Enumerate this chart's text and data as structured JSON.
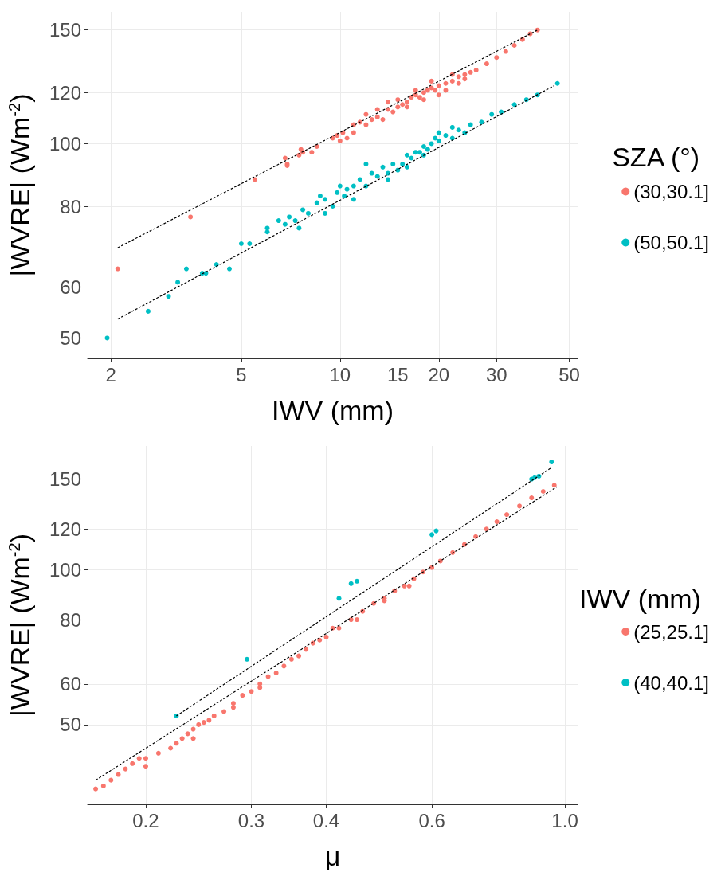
{
  "chart_data": [
    {
      "type": "scatter",
      "xlabel": "IWV (mm)",
      "ylabel": "|WVRE| (Wm$^{-2}$)",
      "legend_title": "SZA (°)",
      "legend": "right",
      "grid": true,
      "marker": "circle",
      "log": "xy",
      "xlim": [
        1.7,
        53
      ],
      "xticks": [
        2,
        5,
        10,
        15,
        20,
        30,
        50
      ],
      "ylim": [
        46.5,
        160
      ],
      "yticks": [
        50,
        60,
        80,
        100,
        120,
        150
      ],
      "series": [
        {
          "name": "(30,30.1]",
          "color": "#f8766d",
          "x": [
            2.1,
            3.5,
            5.5,
            6.8,
            6.9,
            6.9,
            7.5,
            7.6,
            7.7,
            8.2,
            8.5,
            9.5,
            9.8,
            10,
            10.2,
            10.5,
            11,
            11.5,
            12,
            12.5,
            13,
            13.5,
            14,
            14.5,
            15,
            15.5,
            16,
            16.5,
            17,
            17.5,
            18,
            18.5,
            19,
            19.5,
            20,
            21,
            22,
            23,
            24,
            25,
            26,
            28,
            30,
            32,
            34,
            36,
            38,
            40,
            15,
            16,
            17,
            18,
            19,
            20,
            21,
            22,
            23,
            24,
            13,
            14,
            12,
            11
          ],
          "values": [
            64,
            77,
            88,
            95,
            93,
            92.5,
            96,
            98,
            97,
            97,
            99,
            102,
            103,
            101,
            104,
            102,
            104,
            108,
            107,
            109,
            110,
            109,
            113,
            112,
            114,
            115,
            116,
            118,
            119,
            118,
            120,
            121,
            122,
            121,
            123,
            124,
            125,
            127,
            128,
            129,
            130,
            133,
            136,
            139,
            142,
            145,
            148,
            150,
            117,
            114,
            121,
            117,
            125,
            119,
            121,
            128,
            124,
            126,
            113,
            116,
            111,
            107
          ]
        },
        {
          "name": "(50,50.1]",
          "color": "#00bfc4",
          "x": [
            1.95,
            2.6,
            3,
            3.2,
            3.4,
            3.8,
            3.9,
            4.2,
            4.6,
            5,
            5.3,
            6,
            6,
            6.5,
            6.8,
            7,
            7.3,
            7.5,
            7.7,
            8,
            8.5,
            8.7,
            9,
            9.5,
            9.8,
            10,
            10.3,
            10.5,
            11,
            11.5,
            12,
            12.5,
            13,
            13.5,
            14,
            14.5,
            15,
            15.5,
            16,
            16.5,
            17,
            17.5,
            18,
            18.5,
            19,
            19.5,
            20,
            21,
            22,
            23,
            24,
            25,
            27,
            29,
            31,
            34,
            37,
            40,
            46,
            12,
            14,
            16,
            20,
            22,
            18,
            11,
            9
          ],
          "values": [
            50,
            55,
            58,
            61,
            64,
            63,
            63,
            65,
            64,
            70,
            70,
            73,
            74,
            76,
            75,
            77,
            76,
            74,
            79,
            78,
            81,
            83,
            78,
            80,
            84,
            86,
            83,
            85,
            82,
            88,
            86,
            90,
            89,
            92,
            90,
            93,
            91,
            93,
            96,
            95,
            97,
            97,
            99,
            98,
            100,
            102,
            101,
            103,
            102,
            105,
            104,
            107,
            108,
            111,
            112,
            115,
            117,
            119,
            124,
            93,
            88,
            92,
            104,
            106,
            96,
            86,
            82
          ]
        },
        {
          "type": "line",
          "color": "#000000",
          "marker": "none",
          "line_style": "dashed",
          "x": [
            2.1,
            40
          ],
          "values": [
            69,
            150
          ]
        },
        {
          "type": "line",
          "color": "#000000",
          "marker": "none",
          "line_style": "dashed",
          "x": [
            2.1,
            45
          ],
          "values": [
            53.5,
            123
          ]
        }
      ]
    },
    {
      "type": "scatter",
      "xlabel": "μ",
      "ylabel": "|WVRE| (Wm$^{-2}$)",
      "legend_title": "IWV (mm)",
      "legend": "right",
      "grid": true,
      "marker": "circle",
      "log": "xy",
      "xlim": [
        0.16,
        1.05
      ],
      "xticks": [
        0.2,
        0.3,
        0.4,
        0.6,
        {
          "value": 1,
          "label": "1.0"
        }
      ],
      "ylim": [
        35,
        174
      ],
      "yticks": [
        50,
        60,
        80,
        100,
        120,
        150
      ],
      "series": [
        {
          "name": "(25,25.1]",
          "color": "#f8766d",
          "x": [
            0.165,
            0.17,
            0.175,
            0.18,
            0.185,
            0.19,
            0.195,
            0.2,
            0.21,
            0.22,
            0.23,
            0.235,
            0.24,
            0.245,
            0.25,
            0.255,
            0.26,
            0.27,
            0.28,
            0.29,
            0.3,
            0.31,
            0.32,
            0.33,
            0.34,
            0.35,
            0.36,
            0.37,
            0.38,
            0.39,
            0.4,
            0.42,
            0.44,
            0.46,
            0.48,
            0.5,
            0.52,
            0.54,
            0.56,
            0.58,
            0.6,
            0.62,
            0.65,
            0.68,
            0.71,
            0.74,
            0.77,
            0.8,
            0.84,
            0.88,
            0.92,
            0.96,
            0.2,
            0.225,
            0.24,
            0.28,
            0.31,
            0.41,
            0.45,
            0.5,
            0.55
          ],
          "values": [
            37.5,
            38,
            39,
            40,
            41,
            42,
            43,
            43,
            44,
            45,
            47,
            48,
            49,
            50,
            50.5,
            51,
            52,
            53,
            55,
            57,
            58,
            60,
            62,
            63,
            65,
            67,
            68,
            70,
            72,
            73,
            74,
            77,
            80,
            83,
            86,
            88,
            91,
            93,
            96,
            99,
            101,
            104,
            108,
            112,
            116,
            120,
            124,
            128,
            133,
            138,
            142,
            146,
            41.5,
            46,
            47,
            54,
            59,
            77,
            80,
            87,
            93
          ]
        },
        {
          "name": "(40,40.1]",
          "color": "#00bfc4",
          "x": [
            0.225,
            0.295,
            0.42,
            0.44,
            0.45,
            0.6,
            0.61,
            0.88,
            0.89,
            0.905,
            0.95
          ],
          "values": [
            52,
            67,
            88,
            94,
            95,
            117,
            119,
            150,
            151,
            152,
            162
          ]
        },
        {
          "type": "line",
          "color": "#000000",
          "marker": "none",
          "line_style": "dashed",
          "x": [
            0.165,
            0.97
          ],
          "values": [
            39,
            145
          ]
        },
        {
          "type": "line",
          "color": "#000000",
          "marker": "none",
          "line_style": "dashed",
          "x": [
            0.225,
            0.95
          ],
          "values": [
            52,
            158
          ]
        }
      ]
    }
  ]
}
